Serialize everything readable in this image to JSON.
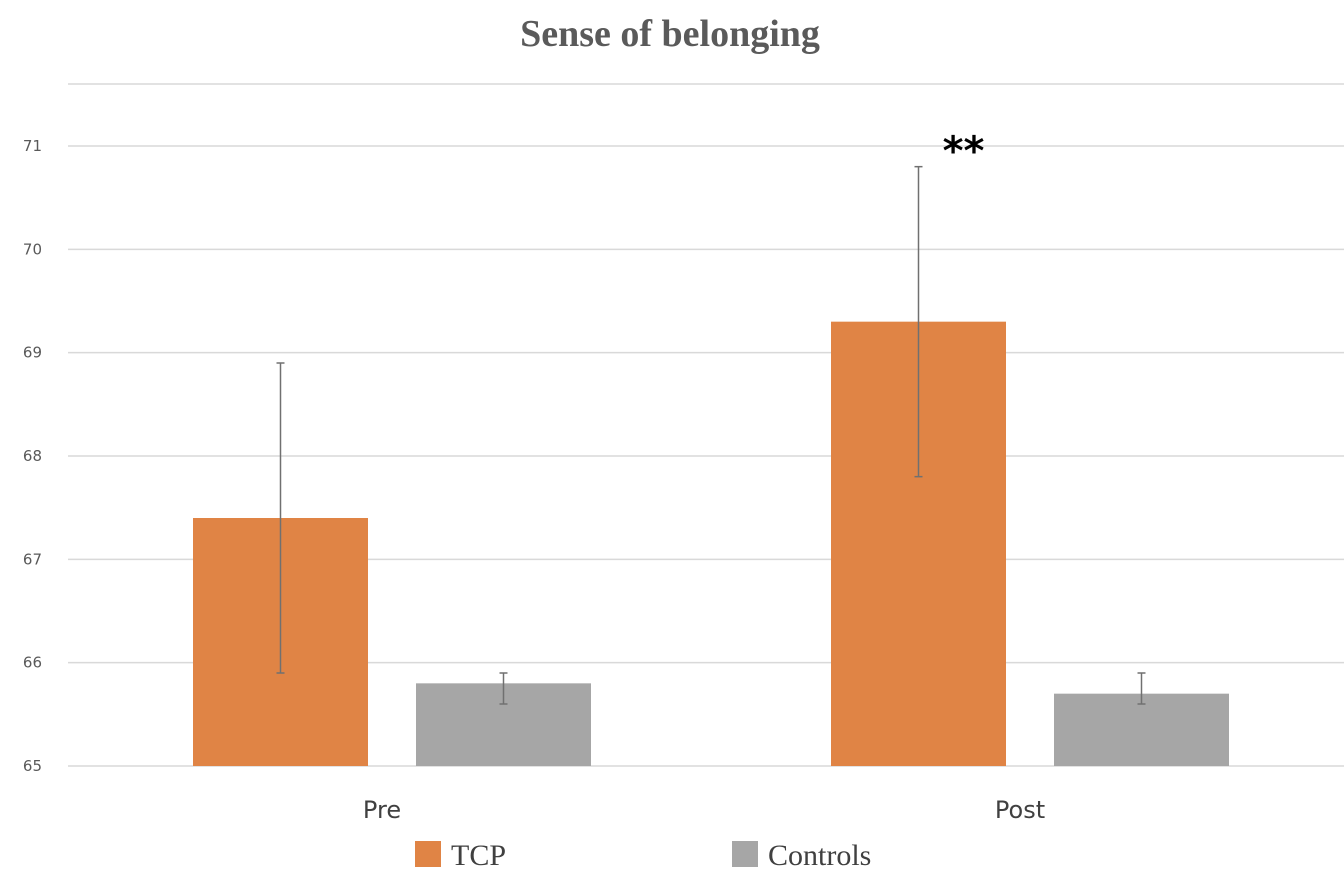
{
  "chart_data": {
    "type": "bar",
    "title": "Sense of belonging",
    "xlabel": "",
    "ylabel": "",
    "ylim": [
      65,
      71.6
    ],
    "yticks": [
      65,
      66,
      67,
      68,
      69,
      70,
      71
    ],
    "categories": [
      "Pre",
      "Post"
    ],
    "series": [
      {
        "name": "TCP",
        "color": "#e08445",
        "values": [
          67.4,
          69.3
        ],
        "error_low": [
          65.9,
          67.8
        ],
        "error_high": [
          68.9,
          70.8
        ]
      },
      {
        "name": "Controls",
        "color": "#a6a6a6",
        "values": [
          65.8,
          65.7
        ],
        "error_low": [
          65.6,
          65.6
        ],
        "error_high": [
          65.9,
          65.9
        ]
      }
    ],
    "annotations": [
      {
        "text": "**",
        "category": "Post",
        "series": "TCP"
      }
    ],
    "grid": true,
    "legend_position": "bottom"
  }
}
